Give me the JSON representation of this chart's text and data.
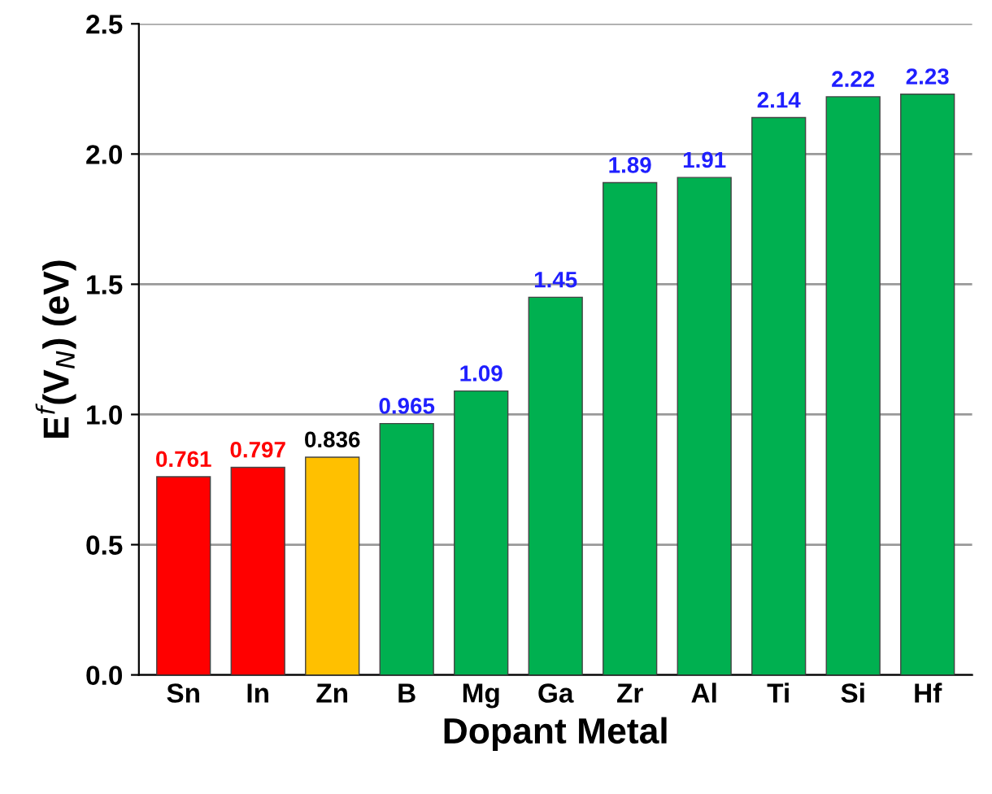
{
  "chart_data": {
    "type": "bar",
    "xlabel": "Dopant Metal",
    "ylabel": "E$^{f}$(V$_{N}$) (eV)",
    "categories": [
      "Sn",
      "In",
      "Zn",
      "B",
      "Mg",
      "Ga",
      "Zr",
      "Al",
      "Ti",
      "Si",
      "Hf"
    ],
    "values": [
      0.761,
      0.797,
      0.836,
      0.965,
      1.09,
      1.45,
      1.89,
      1.91,
      2.14,
      2.22,
      2.23
    ],
    "colors": [
      "#ff0000",
      "#ff0000",
      "#ffc000",
      "#00b050",
      "#00b050",
      "#00b050",
      "#00b050",
      "#00b050",
      "#00b050",
      "#00b050",
      "#00b050"
    ],
    "data_labels": true,
    "ylim": [
      0,
      2.5
    ],
    "yticks": [
      {
        "value": 0,
        "label": "0.0"
      },
      {
        "value": 0.5,
        "label": "0.5"
      },
      {
        "value": 1.0,
        "label": "1.0"
      },
      {
        "value": 1.5,
        "label": "1.5"
      },
      {
        "value": 2.0,
        "label": "2.0"
      },
      {
        "value": 2.5,
        "label": "2.5"
      }
    ],
    "grid": "y"
  }
}
